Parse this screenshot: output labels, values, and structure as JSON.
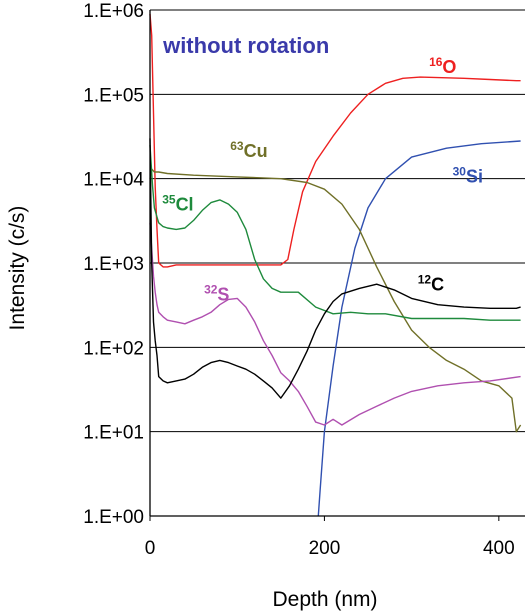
{
  "chart_data": {
    "type": "line",
    "title": "without rotation",
    "xlabel": "Depth (nm)",
    "ylabel": "Intensity (c/s)",
    "xlim": [
      0,
      430
    ],
    "ylim": [
      1,
      1000000
    ],
    "yscale": "log",
    "grid": "horizontal",
    "x_ticks": [
      0,
      200,
      400
    ],
    "y_ticks": [
      {
        "value": 1,
        "label": "1.E+00"
      },
      {
        "value": 10,
        "label": "1.E+01"
      },
      {
        "value": 100,
        "label": "1.E+02"
      },
      {
        "value": 1000,
        "label": "1.E+03"
      },
      {
        "value": 10000,
        "label": "1.E+04"
      },
      {
        "value": 100000,
        "label": "1.E+05"
      },
      {
        "value": 1000000,
        "label": "1.E+06"
      }
    ],
    "colors": {
      "title": "#3a3aaa",
      "O": "#ee2020",
      "Si": "#3050b0",
      "Cu": "#707028",
      "Cl": "#1e8a3c",
      "S": "#b050b0",
      "C": "#000000"
    },
    "series": [
      {
        "mass": "16",
        "element": "O",
        "color_key": "O",
        "x": [
          0,
          2,
          4,
          6,
          8,
          10,
          15,
          20,
          30,
          60,
          100,
          130,
          150,
          158,
          165,
          175,
          190,
          210,
          230,
          250,
          270,
          290,
          310,
          330,
          360,
          390,
          420,
          425
        ],
        "y": [
          900000,
          500000,
          60000,
          8000,
          2500,
          1000,
          900,
          900,
          950,
          950,
          950,
          950,
          950,
          1100,
          2500,
          7000,
          16000,
          32000,
          60000,
          100000,
          135000,
          155000,
          160000,
          158000,
          155000,
          150000,
          145000,
          145000
        ]
      },
      {
        "mass": "30",
        "element": "Si",
        "color_key": "Si",
        "x": [
          193,
          195,
          200,
          210,
          220,
          235,
          250,
          270,
          300,
          340,
          380,
          425
        ],
        "y": [
          1,
          2,
          10,
          60,
          300,
          1500,
          4500,
          10000,
          18000,
          23000,
          26000,
          28000
        ]
      },
      {
        "mass": "63",
        "element": "Cu",
        "color_key": "Cu",
        "x": [
          0,
          2,
          5,
          10,
          20,
          50,
          100,
          150,
          180,
          200,
          220,
          240,
          260,
          280,
          300,
          320,
          340,
          360,
          380,
          400,
          415,
          420,
          425
        ],
        "y": [
          10000,
          13000,
          12000,
          12000,
          11500,
          11000,
          10500,
          10000,
          9000,
          7500,
          5000,
          2500,
          900,
          350,
          160,
          100,
          70,
          55,
          40,
          35,
          25,
          10,
          12
        ]
      },
      {
        "mass": "35",
        "element": "Cl",
        "color_key": "Cl",
        "x": [
          0,
          3,
          5,
          8,
          10,
          15,
          20,
          30,
          40,
          50,
          60,
          70,
          80,
          90,
          100,
          110,
          120,
          130,
          140,
          150,
          170,
          190,
          210,
          230,
          250,
          270,
          300,
          330,
          360,
          390,
          425
        ],
        "y": [
          25000,
          8000,
          4500,
          3500,
          3000,
          2700,
          2600,
          2500,
          2600,
          3200,
          4200,
          5200,
          5600,
          5000,
          4000,
          2500,
          1100,
          650,
          500,
          450,
          450,
          300,
          250,
          260,
          250,
          250,
          220,
          220,
          220,
          210,
          210
        ]
      },
      {
        "mass": "32",
        "element": "S",
        "color_key": "S",
        "x": [
          0,
          4,
          6,
          8,
          10,
          15,
          20,
          30,
          40,
          50,
          60,
          70,
          80,
          90,
          100,
          110,
          120,
          130,
          140,
          150,
          160,
          170,
          180,
          190,
          200,
          210,
          220,
          240,
          260,
          280,
          300,
          330,
          360,
          390,
          425
        ],
        "y": [
          3000,
          700,
          450,
          320,
          260,
          230,
          210,
          200,
          190,
          210,
          230,
          260,
          320,
          370,
          380,
          300,
          200,
          120,
          80,
          50,
          40,
          30,
          20,
          13,
          12,
          14,
          12,
          16,
          20,
          25,
          30,
          35,
          38,
          40,
          45
        ]
      },
      {
        "mass": "12",
        "element": "C",
        "color_key": "C",
        "x": [
          0,
          2,
          4,
          6,
          8,
          10,
          15,
          20,
          30,
          40,
          50,
          60,
          70,
          80,
          90,
          100,
          110,
          120,
          130,
          140,
          150,
          160,
          170,
          180,
          190,
          200,
          210,
          220,
          240,
          260,
          280,
          300,
          330,
          360,
          390,
          420,
          425
        ],
        "y": [
          30000,
          1000,
          200,
          120,
          80,
          45,
          40,
          38,
          40,
          42,
          48,
          58,
          66,
          70,
          66,
          60,
          55,
          48,
          40,
          33,
          25,
          35,
          55,
          90,
          160,
          250,
          350,
          430,
          500,
          560,
          480,
          380,
          320,
          300,
          290,
          290,
          300
        ]
      }
    ],
    "labels": [
      {
        "mass": "16",
        "element": "O",
        "color_key": "O",
        "x": 320,
        "y": 180000
      },
      {
        "mass": "30",
        "element": "Si",
        "color_key": "Si",
        "x": 347,
        "y": 9000
      },
      {
        "mass": "63",
        "element": "Cu",
        "color_key": "Cu",
        "x": 92,
        "y": 18000
      },
      {
        "mass": "35",
        "element": "Cl",
        "color_key": "Cl",
        "x": 14,
        "y": 4200
      },
      {
        "mass": "32",
        "element": "S",
        "color_key": "S",
        "x": 62,
        "y": 360
      },
      {
        "mass": "12",
        "element": "C",
        "color_key": "C",
        "x": 307,
        "y": 470
      }
    ],
    "title_position": [
      15,
      310000
    ]
  }
}
